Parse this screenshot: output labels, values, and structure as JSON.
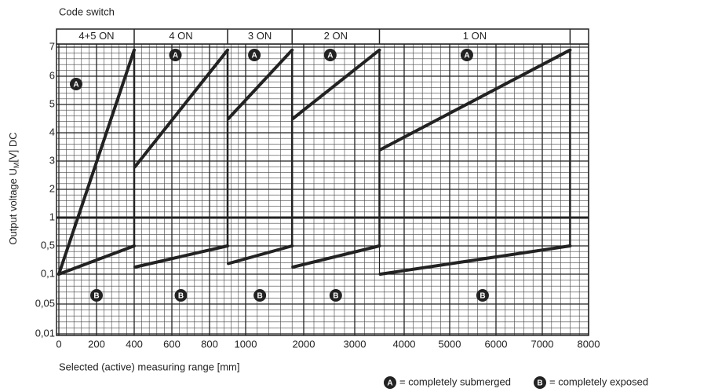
{
  "chart_data": {
    "type": "line",
    "title": "Code switch",
    "ylabel": "Output voltage U",
    "ylabel_sub": "M",
    "ylabel_end": "[V] DC",
    "xlabel": "Selected (active) measuring range [mm]",
    "xticks": [
      0,
      200,
      400,
      600,
      800,
      1000,
      2000,
      3000,
      4000,
      5000,
      6000,
      7000,
      8000
    ],
    "xlim": [
      0,
      8000
    ],
    "yticks": [
      {
        "value": 0.01,
        "label": "0,01"
      },
      {
        "value": 0.05,
        "label": "0,05"
      },
      {
        "value": 0.1,
        "label": "0,1"
      },
      {
        "value": 0.5,
        "label": "0,5"
      },
      1,
      2,
      3,
      4,
      5,
      6,
      7
    ],
    "ylim": [
      0.01,
      7.1
    ],
    "color": "#222222",
    "grid": true,
    "segments": [
      {
        "switch": "4+5 ON",
        "range": [
          0,
          400
        ],
        "submerged": [
          0.1,
          6.9
        ],
        "exposed": [
          0.1,
          0.5
        ]
      },
      {
        "switch": "4 ON",
        "range": [
          400,
          900
        ],
        "submerged": [
          2.8,
          6.9
        ],
        "exposed": [
          0.2,
          0.5
        ]
      },
      {
        "switch": "3 ON",
        "range": [
          900,
          1800
        ],
        "submerged": [
          4.5,
          6.9
        ],
        "exposed": [
          0.25,
          0.5
        ]
      },
      {
        "switch": "2 ON",
        "range": [
          1800,
          3500
        ],
        "submerged": [
          4.5,
          6.9
        ],
        "exposed": [
          0.2,
          0.5
        ]
      },
      {
        "switch": "1 ON",
        "range": [
          3500,
          7600
        ],
        "submerged": [
          3.4,
          6.9
        ],
        "exposed": [
          0.1,
          0.5
        ]
      }
    ],
    "key": {
      "submerged": {
        "symbol": "A",
        "label": "= completely submerged"
      },
      "exposed": {
        "symbol": "B",
        "label": "= completely exposed"
      }
    }
  }
}
